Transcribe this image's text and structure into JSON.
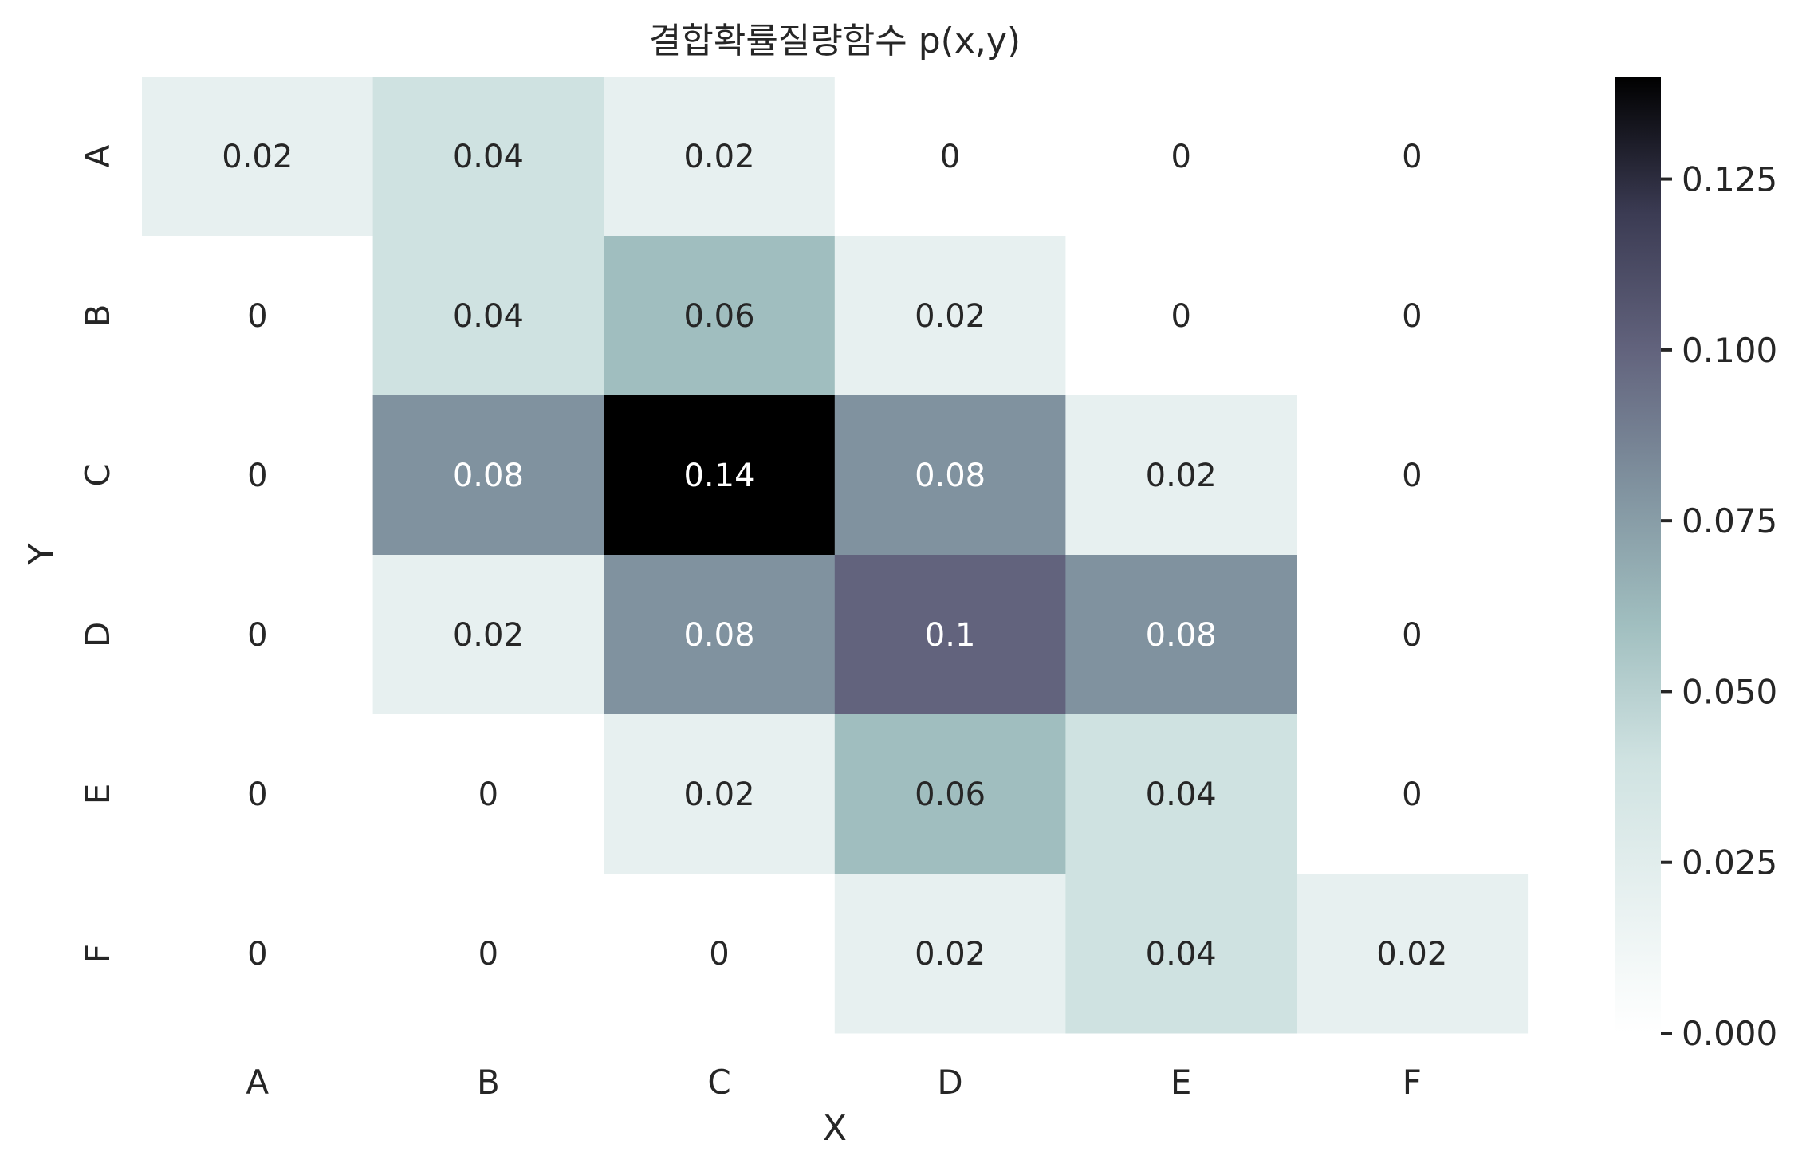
{
  "chart_data": {
    "type": "heatmap",
    "title": "결합확률질량함수 p(x,y)",
    "xlabel": "X",
    "ylabel": "Y",
    "x_categories": [
      "A",
      "B",
      "C",
      "D",
      "E",
      "F"
    ],
    "y_categories": [
      "A",
      "B",
      "C",
      "D",
      "E",
      "F"
    ],
    "values": [
      [
        0.02,
        0.04,
        0.02,
        0,
        0,
        0
      ],
      [
        0,
        0.04,
        0.06,
        0.02,
        0,
        0
      ],
      [
        0,
        0.08,
        0.14,
        0.08,
        0.02,
        0
      ],
      [
        0,
        0.02,
        0.08,
        0.1,
        0.08,
        0
      ],
      [
        0,
        0,
        0.02,
        0.06,
        0.04,
        0
      ],
      [
        0,
        0,
        0,
        0.02,
        0.04,
        0.02
      ]
    ],
    "labels": [
      [
        "0.02",
        "0.04",
        "0.02",
        "0",
        "0",
        "0"
      ],
      [
        "0",
        "0.04",
        "0.06",
        "0.02",
        "0",
        "0"
      ],
      [
        "0",
        "0.08",
        "0.14",
        "0.08",
        "0.02",
        "0"
      ],
      [
        "0",
        "0.02",
        "0.08",
        "0.1",
        "0.08",
        "0"
      ],
      [
        "0",
        "0",
        "0.02",
        "0.06",
        "0.04",
        "0"
      ],
      [
        "0",
        "0",
        "0",
        "0.02",
        "0.04",
        "0.02"
      ]
    ],
    "colorbar": {
      "min": 0,
      "max": 0.14,
      "ticks": [
        0.0,
        0.025,
        0.05,
        0.075,
        0.1,
        0.125
      ],
      "tick_labels": [
        "0.000",
        "0.025",
        "0.050",
        "0.075",
        "0.100",
        "0.125"
      ],
      "colormap": "bone_r"
    },
    "grid": false
  }
}
